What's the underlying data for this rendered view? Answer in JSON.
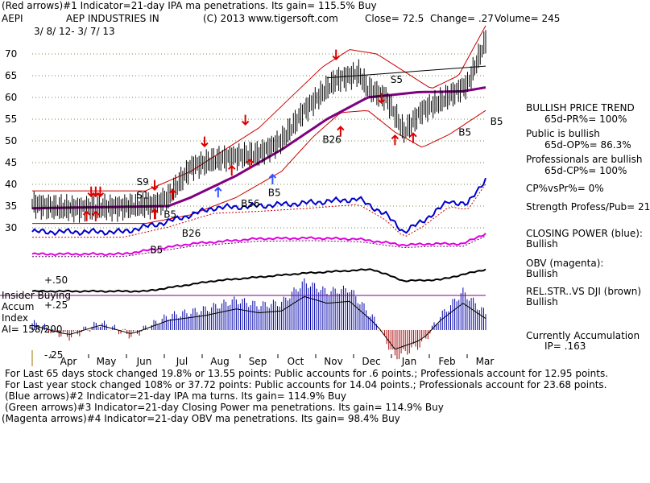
{
  "header": {
    "line1": "(Red arrows)#1 Indicator=21-day IPA ma penetrations. Its gain= 115.5% Buy",
    "ticker": "AEPI",
    "company": "AEP INDUSTRIES IN",
    "copyright": "(C) 2013 www.tigersoft.com",
    "close": "Close= 72.5",
    "change": "Change= .27",
    "volume": "Volume= 245",
    "date_range": "3/ 8/ 12- 3/ 7/ 13"
  },
  "right_panel": {
    "trend_title": "BULLISH PRICE TREND",
    "trend_value": "65d-PR%= 100%",
    "public_title": "Public is bullish",
    "public_value": "65d-OP%= 86.3%",
    "pro_title": "Professionals are bullish",
    "pro_value": "65d-CP%= 100%",
    "cp_vs_pr": "CP%vsPr%= 0%",
    "strength": "Strength Profess/Pub= 21",
    "closing_power_title": "CLOSING POWER (blue):",
    "closing_power_value": "Bullish",
    "obv_title": "OBV (magenta):",
    "obv_value": "Bullish",
    "relstr_title": "REL.STR..VS DJI (brown)",
    "relstr_value": "Bullish",
    "accum_title": "Currently Accumulation",
    "accum_value": "IP= .163"
  },
  "left_panel": {
    "insider": "Insider Buying",
    "accum": "Accum",
    "index": "Index",
    "ai": "AI= 158/200",
    "plus50": "+.50",
    "plus25": "+.25",
    "minus25": "-.25"
  },
  "footer": {
    "line1": "For Last 65 days stock changed  19.8% or  13.55 points:  Public accounts for  .6 points.;  Professionals account for  12.95 points.",
    "line2": "For Last year stock changed  108% or  37.72 points:  Public accounts for  14.04 points.;  Professionals account for  23.68 points.",
    "line3": "(Blue arrows)#2 Indicator=21-day IPA ma turns. Its gain= 114.9% Buy",
    "line4": "(Green arrows)#3 Indicator=21-day Closing Power ma penetrations. Its gain= 114.9% Buy",
    "line5": "(Magenta arrows)#4 Indicator=21-day OBV ma penetrations. Its gain= 98.4% Buy"
  },
  "chart_data": {
    "type": "line",
    "title": "AEPI AEP INDUSTRIES IN",
    "x_tick_labels": [
      "Apr",
      "May",
      "Jun",
      "Jul",
      "Aug",
      "Sep",
      "Oct",
      "Nov",
      "Dec",
      "Jan",
      "Feb",
      "Mar"
    ],
    "y_tick_labels": [
      "70",
      "65",
      "60",
      "55",
      "50",
      "45",
      "40",
      "35",
      "30"
    ],
    "ylim": [
      25,
      75
    ],
    "colors": {
      "price": "#000000",
      "bands": "#cc0000",
      "ma": "#800080",
      "closing_power": "#0000cc",
      "obv": "#e000e0",
      "relstr": "#000000",
      "ai": "#0000aa",
      "ai_neg": "#aa0000",
      "grid": "#6a8f4a",
      "arrow": "#dd0000",
      "blue_arrow": "#3355ff"
    },
    "price_keypoints": [
      [
        0,
        35.5
      ],
      [
        0.06,
        34.5
      ],
      [
        0.12,
        34.5
      ],
      [
        0.2,
        34.8
      ],
      [
        0.27,
        35.3
      ],
      [
        0.3,
        37
      ],
      [
        0.35,
        44
      ],
      [
        0.42,
        46
      ],
      [
        0.5,
        47
      ],
      [
        0.55,
        50
      ],
      [
        0.6,
        57
      ],
      [
        0.67,
        64
      ],
      [
        0.72,
        65.5
      ],
      [
        0.74,
        62
      ],
      [
        0.78,
        60
      ],
      [
        0.82,
        52
      ],
      [
        0.86,
        57
      ],
      [
        0.9,
        59
      ],
      [
        0.96,
        63
      ],
      [
        1.0,
        73
      ]
    ],
    "ma_keypoints": [
      [
        0,
        34.5
      ],
      [
        0.3,
        35
      ],
      [
        0.35,
        37
      ],
      [
        0.45,
        42
      ],
      [
        0.55,
        48
      ],
      [
        0.65,
        55
      ],
      [
        0.74,
        60
      ],
      [
        0.85,
        61.2
      ],
      [
        0.95,
        61.4
      ],
      [
        1.0,
        62.3
      ]
    ],
    "upper_band_keypoints": [
      [
        0,
        38.5
      ],
      [
        0.25,
        38.5
      ],
      [
        0.35,
        43
      ],
      [
        0.5,
        53
      ],
      [
        0.58,
        61
      ],
      [
        0.64,
        67
      ],
      [
        0.7,
        71
      ],
      [
        0.76,
        70
      ],
      [
        0.82,
        66
      ],
      [
        0.88,
        62
      ],
      [
        0.94,
        65
      ],
      [
        1.0,
        76.5
      ]
    ],
    "lower_band_keypoints": [
      [
        0,
        31
      ],
      [
        0.25,
        31
      ],
      [
        0.35,
        33
      ],
      [
        0.45,
        37
      ],
      [
        0.55,
        43
      ],
      [
        0.62,
        51
      ],
      [
        0.68,
        56.5
      ],
      [
        0.74,
        57
      ],
      [
        0.8,
        52
      ],
      [
        0.86,
        48.5
      ],
      [
        0.92,
        51.5
      ],
      [
        1.0,
        57
      ]
    ],
    "resistance_line": [
      [
        0.65,
        64.5
      ],
      [
        1.0,
        67.2
      ]
    ],
    "closing_power_keypoints": [
      [
        0,
        0.2
      ],
      [
        0.2,
        0.2
      ],
      [
        0.3,
        0.35
      ],
      [
        0.4,
        0.55
      ],
      [
        0.5,
        0.58
      ],
      [
        0.6,
        0.62
      ],
      [
        0.72,
        0.68
      ],
      [
        0.78,
        0.45
      ],
      [
        0.82,
        0.2
      ],
      [
        0.86,
        0.35
      ],
      [
        0.92,
        0.65
      ],
      [
        0.96,
        0.6
      ],
      [
        1.0,
        0.98
      ]
    ],
    "obv_keypoints": [
      [
        0,
        0.2
      ],
      [
        0.2,
        0.2
      ],
      [
        0.35,
        0.6
      ],
      [
        0.5,
        0.8
      ],
      [
        0.62,
        0.82
      ],
      [
        0.72,
        0.78
      ],
      [
        0.82,
        0.55
      ],
      [
        0.88,
        0.6
      ],
      [
        0.95,
        0.6
      ],
      [
        1.0,
        1.0
      ]
    ],
    "relstr_keypoints": [
      [
        0,
        0.1
      ],
      [
        0.25,
        0.1
      ],
      [
        0.4,
        0.5
      ],
      [
        0.6,
        0.8
      ],
      [
        0.75,
        0.95
      ],
      [
        0.82,
        0.5
      ],
      [
        0.9,
        0.55
      ],
      [
        1.0,
        0.95
      ]
    ],
    "ai_keypoints": [
      [
        0,
        0.05
      ],
      [
        0.08,
        -0.05
      ],
      [
        0.15,
        0.05
      ],
      [
        0.22,
        -0.04
      ],
      [
        0.3,
        0.1
      ],
      [
        0.38,
        0.15
      ],
      [
        0.45,
        0.22
      ],
      [
        0.5,
        0.18
      ],
      [
        0.55,
        0.2
      ],
      [
        0.6,
        0.35
      ],
      [
        0.65,
        0.28
      ],
      [
        0.7,
        0.3
      ],
      [
        0.76,
        0.05
      ],
      [
        0.8,
        -0.2
      ],
      [
        0.86,
        -0.1
      ],
      [
        0.9,
        0.1
      ],
      [
        0.95,
        0.28
      ],
      [
        1.0,
        0.12
      ]
    ],
    "annotations": [
      {
        "label": "S9",
        "x": 0.23,
        "y": 39.8
      },
      {
        "label": "S1",
        "x": 0.23,
        "y": 36.8
      },
      {
        "label": "S5",
        "x": 0.79,
        "y": 63.3
      },
      {
        "label": "B5",
        "x": 0.52,
        "y": 37.3
      },
      {
        "label": "B5",
        "x": 0.29,
        "y": 32.3
      },
      {
        "label": "B26",
        "x": 0.33,
        "y": 28
      },
      {
        "label": "B5",
        "x": 0.26,
        "y": 24.2
      },
      {
        "label": "B56",
        "x": 0.46,
        "y": 34.8
      },
      {
        "label": "B26",
        "x": 0.64,
        "y": 49.5
      },
      {
        "label": "B5",
        "x": 0.94,
        "y": 51.2
      },
      {
        "label": "B5",
        "x": 1.01,
        "y": 53.7
      }
    ]
  }
}
